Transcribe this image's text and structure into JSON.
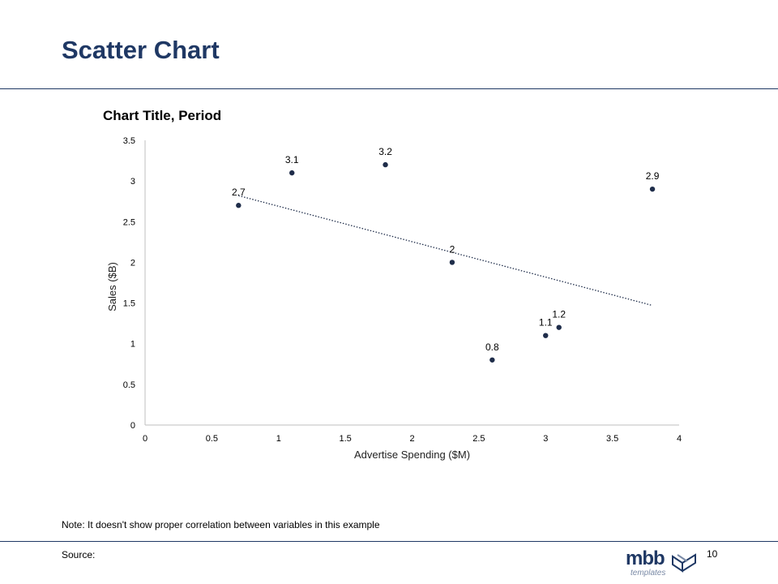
{
  "slide": {
    "title": "Scatter Chart",
    "note": "Note: It doesn't show proper correlation between variables in this example",
    "source": "Source:",
    "page_number": "10",
    "logo_text": "mbb",
    "logo_subtext": "templates"
  },
  "colors": {
    "title": "#1f3864",
    "points": "#1f2d4a",
    "trendline": "#1f2d4a",
    "axis": "#bfbfbf"
  },
  "chart_data": {
    "type": "scatter",
    "title": "Chart Title, Period",
    "xlabel": "Advertise Spending ($M)",
    "ylabel": "Sales ($B)",
    "xlim": [
      0,
      4
    ],
    "ylim": [
      0,
      3.5
    ],
    "xticks": [
      "0",
      "0.5",
      "1",
      "1.5",
      "2",
      "2.5",
      "3",
      "3.5",
      "4"
    ],
    "yticks": [
      "0",
      "0.5",
      "1",
      "1.5",
      "2",
      "2.5",
      "3",
      "3.5"
    ],
    "grid": false,
    "points": [
      {
        "x": 0.7,
        "y": 2.7,
        "label": "2.7"
      },
      {
        "x": 1.1,
        "y": 3.1,
        "label": "3.1"
      },
      {
        "x": 1.8,
        "y": 3.2,
        "label": "3.2"
      },
      {
        "x": 2.3,
        "y": 2.0,
        "label": "2"
      },
      {
        "x": 2.6,
        "y": 0.8,
        "label": "0.8"
      },
      {
        "x": 3.0,
        "y": 1.1,
        "label": "1.1"
      },
      {
        "x": 3.1,
        "y": 1.2,
        "label": "1.2"
      },
      {
        "x": 3.8,
        "y": 2.9,
        "label": "2.9"
      }
    ],
    "trendline": {
      "type": "linear",
      "style": "dotted",
      "from": {
        "x": 0.7,
        "y": 2.82
      },
      "to": {
        "x": 3.8,
        "y": 1.47
      }
    }
  }
}
